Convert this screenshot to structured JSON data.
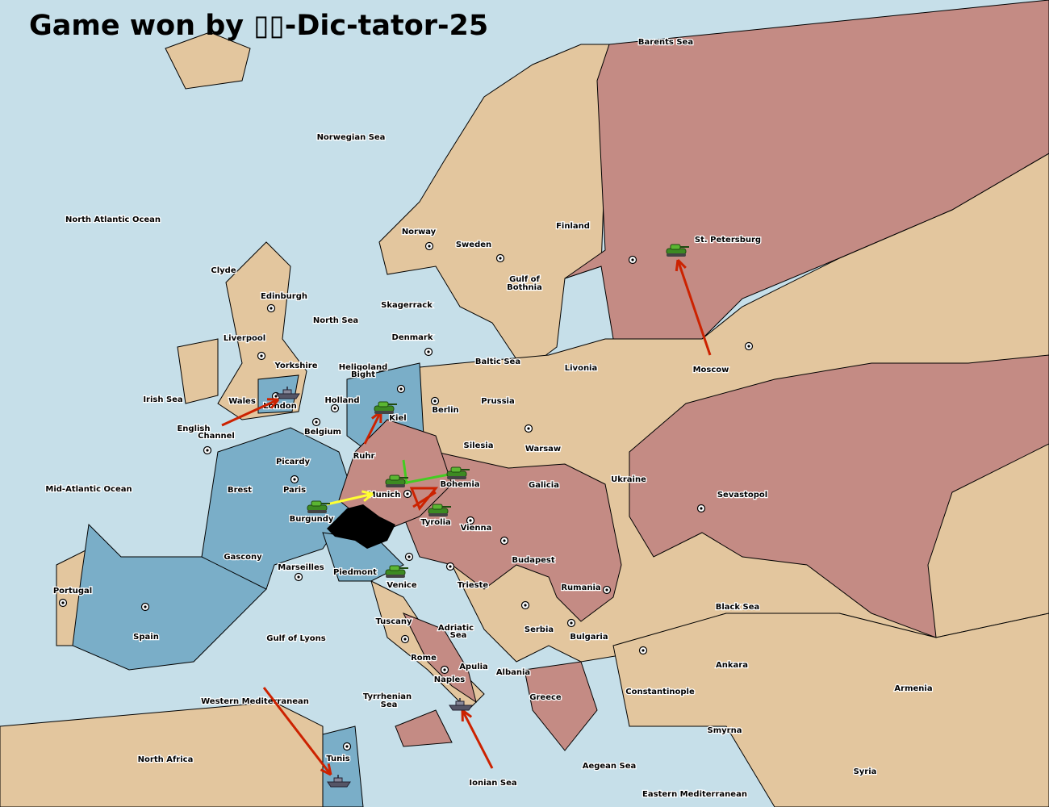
{
  "title": "Game won by ▯▯-Dic-tator-25",
  "colors": {
    "sea": "#c6dfe9",
    "neutral_land": "#e3c69e",
    "blue_power": "#7aaec8",
    "pink_power": "#c48b84",
    "order_arrow": "#cc2200",
    "support_arrow": "#ffff33",
    "hold_arrow": "#44cc22"
  },
  "labels": [
    "Barents Sea",
    "Norwegian Sea",
    "North Atlantic Ocean",
    "Norway",
    "Sweden",
    "Finland",
    "St. Petersburg",
    "Clyde",
    "Edinburgh",
    "Gulf of",
    "Bothnia",
    "Skagerrack",
    "North Sea",
    "Denmark",
    "Liverpool",
    "Baltic Sea",
    "Livonia",
    "Moscow",
    "Yorkshire",
    "Heligoland",
    "Bight",
    "Irish Sea",
    "Wales",
    "Holland",
    "Prussia",
    "London",
    "Berlin",
    "Kiel",
    "English",
    "Channel",
    "Belgium",
    "Warsaw",
    "Silesia",
    "Ruhr",
    "Picardy",
    "Ukraine",
    "Bohemia",
    "Galicia",
    "Mid-Atlantic Ocean",
    "Brest",
    "Paris",
    "Munich",
    "Sevastopol",
    "Burgundy",
    "Tyrolia",
    "Vienna",
    "Gascony",
    "Budapest",
    "Marseilles",
    "Piedmont",
    "Portugal",
    "Venice",
    "Trieste",
    "Rumania",
    "Black Sea",
    "Tuscany",
    "Adriatic",
    "Sea",
    "Serbia",
    "Spain",
    "Gulf of Lyons",
    "Bulgaria",
    "Rome",
    "Apulia",
    "Ankara",
    "Albania",
    "Naples",
    "Armenia",
    "Constantinople",
    "Greece",
    "Western Mediterranean",
    "Tyrrhenian",
    "Sea",
    "Smyrna",
    "Tunis",
    "North Africa",
    "Aegean Sea",
    "Syria",
    "Ionian Sea",
    "Eastern Mediterranean"
  ],
  "units": [
    {
      "type": "fleet",
      "province": "London"
    },
    {
      "type": "army",
      "province": "Kiel"
    },
    {
      "type": "army",
      "province": "St. Petersburg"
    },
    {
      "type": "army",
      "province": "Munich"
    },
    {
      "type": "army",
      "province": "Bohemia"
    },
    {
      "type": "army",
      "province": "Tyrolia"
    },
    {
      "type": "army",
      "province": "Burgundy"
    },
    {
      "type": "army",
      "province": "Venice"
    },
    {
      "type": "fleet",
      "province": "Naples"
    },
    {
      "type": "fleet",
      "province": "Tunis"
    }
  ]
}
